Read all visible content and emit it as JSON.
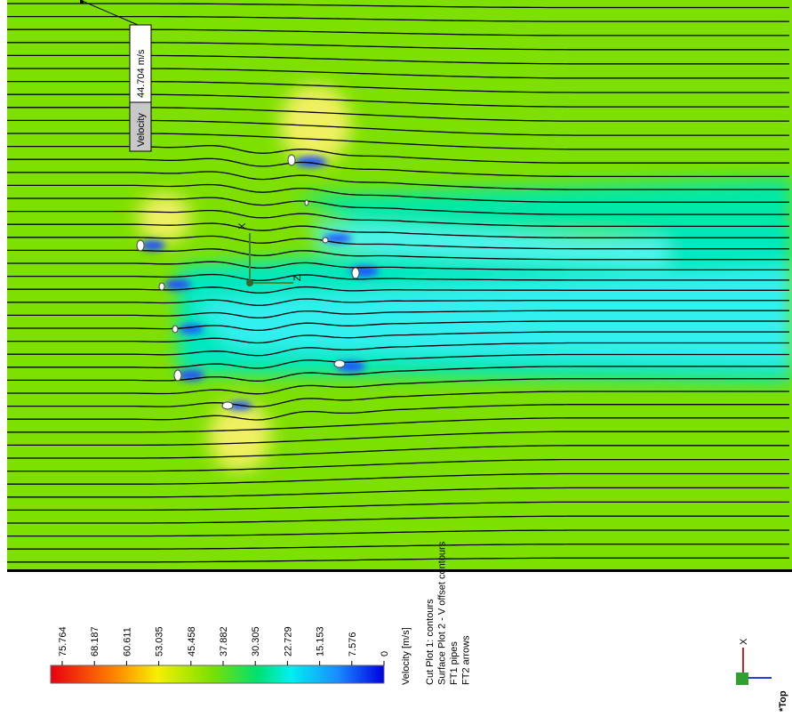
{
  "probe": {
    "label": "Velocity",
    "value": "44.704 m/s"
  },
  "legend": {
    "title": "Velocity [m/s]",
    "ticks": [
      "75.764",
      "68.187",
      "60.611",
      "53.035",
      "45.458",
      "37.882",
      "30.305",
      "22.729",
      "15.153",
      "7.576",
      "0"
    ]
  },
  "plot_info": [
    "Cut Plot 1: contours",
    "Surface Plot 2 - V offset contours",
    "FT1 pipes",
    "FT2 arrows"
  ],
  "axes": {
    "x": "X",
    "z": "Z"
  },
  "view": "*Top"
}
